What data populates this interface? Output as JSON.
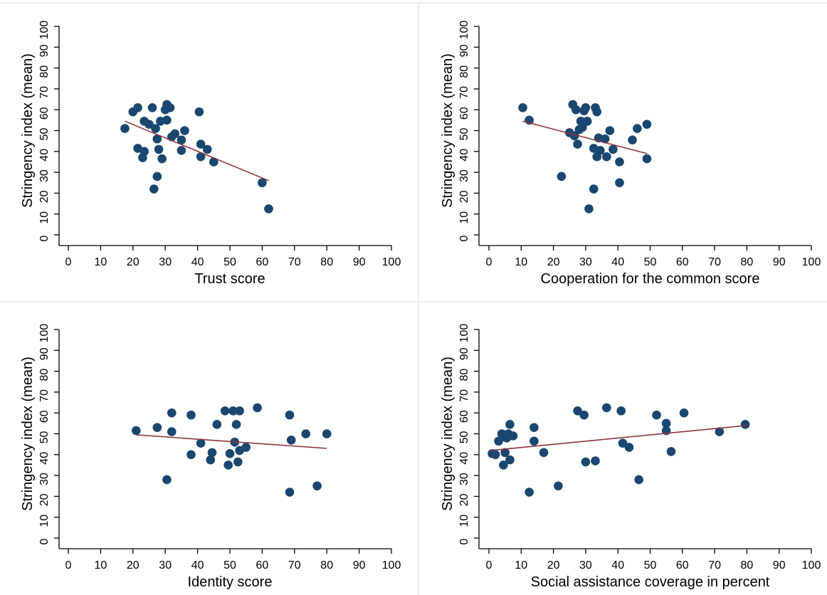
{
  "colors": {
    "background": "#ffffff",
    "panel_border": "#e6eef5",
    "axis": "#000000",
    "marker": "#1a476f",
    "fit_line": "#90353b"
  },
  "chart_data": [
    {
      "type": "scatter",
      "title": "",
      "xlabel": "Trust score",
      "ylabel": "Stringency index (mean)",
      "xlim": [
        0,
        100
      ],
      "ylim": [
        0,
        100
      ],
      "xticks": [
        0,
        10,
        20,
        30,
        40,
        50,
        60,
        70,
        80,
        90,
        100
      ],
      "yticks": [
        0,
        10,
        20,
        30,
        40,
        50,
        60,
        70,
        80,
        90,
        100
      ],
      "grid": false,
      "points": [
        {
          "x": 17.5,
          "y": 51
        },
        {
          "x": 20,
          "y": 59
        },
        {
          "x": 21.5,
          "y": 61
        },
        {
          "x": 21.5,
          "y": 41.5
        },
        {
          "x": 23,
          "y": 37
        },
        {
          "x": 23.5,
          "y": 40
        },
        {
          "x": 23.5,
          "y": 54.5
        },
        {
          "x": 25,
          "y": 53
        },
        {
          "x": 26,
          "y": 61
        },
        {
          "x": 26.5,
          "y": 22
        },
        {
          "x": 27,
          "y": 51
        },
        {
          "x": 27.5,
          "y": 28
        },
        {
          "x": 27.5,
          "y": 46
        },
        {
          "x": 28,
          "y": 41
        },
        {
          "x": 28.5,
          "y": 54.5
        },
        {
          "x": 29,
          "y": 36.5
        },
        {
          "x": 30,
          "y": 60
        },
        {
          "x": 30.5,
          "y": 62.5
        },
        {
          "x": 30.5,
          "y": 55
        },
        {
          "x": 31.5,
          "y": 61
        },
        {
          "x": 32,
          "y": 47
        },
        {
          "x": 33,
          "y": 48.5
        },
        {
          "x": 35,
          "y": 40.5
        },
        {
          "x": 35,
          "y": 45.5
        },
        {
          "x": 36,
          "y": 50
        },
        {
          "x": 40.5,
          "y": 59
        },
        {
          "x": 41,
          "y": 37.5
        },
        {
          "x": 41,
          "y": 43.5
        },
        {
          "x": 43,
          "y": 41
        },
        {
          "x": 45,
          "y": 35
        },
        {
          "x": 60,
          "y": 25
        },
        {
          "x": 62,
          "y": 12.5
        }
      ],
      "fit": {
        "x": [
          17.5,
          62
        ],
        "y": [
          54.5,
          26
        ]
      }
    },
    {
      "type": "scatter",
      "title": "",
      "xlabel": "Cooperation for the common score",
      "ylabel": "Stringency index (mean)",
      "xlim": [
        0,
        100
      ],
      "ylim": [
        0,
        100
      ],
      "xticks": [
        0,
        10,
        20,
        30,
        40,
        50,
        60,
        70,
        80,
        90,
        100
      ],
      "yticks": [
        0,
        10,
        20,
        30,
        40,
        50,
        60,
        70,
        80,
        90,
        100
      ],
      "grid": false,
      "points": [
        {
          "x": 10.5,
          "y": 61
        },
        {
          "x": 12.5,
          "y": 55
        },
        {
          "x": 22.5,
          "y": 28
        },
        {
          "x": 25,
          "y": 49
        },
        {
          "x": 26,
          "y": 62.5
        },
        {
          "x": 26.5,
          "y": 47.5
        },
        {
          "x": 27,
          "y": 60
        },
        {
          "x": 27.5,
          "y": 43.5
        },
        {
          "x": 28,
          "y": 50.5
        },
        {
          "x": 28.5,
          "y": 54.5
        },
        {
          "x": 29,
          "y": 51.5
        },
        {
          "x": 29.5,
          "y": 59.5
        },
        {
          "x": 30,
          "y": 61
        },
        {
          "x": 30.5,
          "y": 54.5
        },
        {
          "x": 31,
          "y": 12.5
        },
        {
          "x": 32.5,
          "y": 22
        },
        {
          "x": 32.5,
          "y": 41.5
        },
        {
          "x": 33,
          "y": 61
        },
        {
          "x": 33.5,
          "y": 59
        },
        {
          "x": 33.5,
          "y": 37.5
        },
        {
          "x": 34,
          "y": 46.5
        },
        {
          "x": 34.5,
          "y": 40.5
        },
        {
          "x": 36,
          "y": 46
        },
        {
          "x": 36.5,
          "y": 37.5
        },
        {
          "x": 37.5,
          "y": 50
        },
        {
          "x": 38.5,
          "y": 41
        },
        {
          "x": 40.5,
          "y": 35
        },
        {
          "x": 40.5,
          "y": 25
        },
        {
          "x": 44.5,
          "y": 45.5
        },
        {
          "x": 46,
          "y": 51
        },
        {
          "x": 49,
          "y": 53
        },
        {
          "x": 49,
          "y": 36.5
        }
      ],
      "fit": {
        "x": [
          10.5,
          49
        ],
        "y": [
          54.5,
          39
        ]
      }
    },
    {
      "type": "scatter",
      "title": "",
      "xlabel": "Identity score",
      "ylabel": "Stringency index (mean)",
      "xlim": [
        0,
        100
      ],
      "ylim": [
        0,
        100
      ],
      "xticks": [
        0,
        10,
        20,
        30,
        40,
        50,
        60,
        70,
        80,
        90,
        100
      ],
      "yticks": [
        0,
        10,
        20,
        30,
        40,
        50,
        60,
        70,
        80,
        90,
        100
      ],
      "grid": false,
      "points": [
        {
          "x": 21,
          "y": 51.5
        },
        {
          "x": 27.5,
          "y": 53
        },
        {
          "x": 30.5,
          "y": 28
        },
        {
          "x": 32,
          "y": 60
        },
        {
          "x": 32,
          "y": 51
        },
        {
          "x": 38,
          "y": 59
        },
        {
          "x": 38,
          "y": 40
        },
        {
          "x": 41,
          "y": 45.5
        },
        {
          "x": 44,
          "y": 37.5
        },
        {
          "x": 44.5,
          "y": 41
        },
        {
          "x": 46,
          "y": 54.5
        },
        {
          "x": 48.5,
          "y": 61
        },
        {
          "x": 49.5,
          "y": 35
        },
        {
          "x": 50,
          "y": 40.5
        },
        {
          "x": 51,
          "y": 61
        },
        {
          "x": 51.5,
          "y": 46
        },
        {
          "x": 52,
          "y": 54.5
        },
        {
          "x": 52.5,
          "y": 36.5
        },
        {
          "x": 53,
          "y": 61
        },
        {
          "x": 53,
          "y": 42
        },
        {
          "x": 55,
          "y": 43.5
        },
        {
          "x": 58.5,
          "y": 62.5
        },
        {
          "x": 68.5,
          "y": 59
        },
        {
          "x": 68.5,
          "y": 22
        },
        {
          "x": 69,
          "y": 47
        },
        {
          "x": 73.5,
          "y": 50
        },
        {
          "x": 77,
          "y": 25
        },
        {
          "x": 80,
          "y": 50
        }
      ],
      "fit": {
        "x": [
          21,
          80
        ],
        "y": [
          49.5,
          43
        ]
      }
    },
    {
      "type": "scatter",
      "title": "",
      "xlabel": "Social assistance coverage in percent",
      "ylabel": "Stringency index (mean)",
      "xlim": [
        0,
        100
      ],
      "ylim": [
        0,
        100
      ],
      "xticks": [
        0,
        10,
        20,
        30,
        40,
        50,
        60,
        70,
        80,
        90,
        100
      ],
      "yticks": [
        0,
        10,
        20,
        30,
        40,
        50,
        60,
        70,
        80,
        90,
        100
      ],
      "grid": false,
      "points": [
        {
          "x": 1,
          "y": 40.5
        },
        {
          "x": 2,
          "y": 40
        },
        {
          "x": 3,
          "y": 46.5
        },
        {
          "x": 4,
          "y": 50
        },
        {
          "x": 4.5,
          "y": 35
        },
        {
          "x": 5,
          "y": 41
        },
        {
          "x": 5.5,
          "y": 48
        },
        {
          "x": 6,
          "y": 50
        },
        {
          "x": 6.5,
          "y": 54.5
        },
        {
          "x": 6.5,
          "y": 37.5
        },
        {
          "x": 7.5,
          "y": 49
        },
        {
          "x": 12.5,
          "y": 22
        },
        {
          "x": 14,
          "y": 53
        },
        {
          "x": 14,
          "y": 46.5
        },
        {
          "x": 17,
          "y": 41
        },
        {
          "x": 21.5,
          "y": 25
        },
        {
          "x": 27.5,
          "y": 61
        },
        {
          "x": 29.5,
          "y": 59
        },
        {
          "x": 30,
          "y": 36.5
        },
        {
          "x": 33,
          "y": 37
        },
        {
          "x": 36.5,
          "y": 62.5
        },
        {
          "x": 41,
          "y": 61
        },
        {
          "x": 41.5,
          "y": 45.5
        },
        {
          "x": 43.5,
          "y": 43.5
        },
        {
          "x": 46.5,
          "y": 28
        },
        {
          "x": 52,
          "y": 59
        },
        {
          "x": 55,
          "y": 55
        },
        {
          "x": 55,
          "y": 51.5
        },
        {
          "x": 56.5,
          "y": 41.5
        },
        {
          "x": 60.5,
          "y": 60
        },
        {
          "x": 71.5,
          "y": 51
        },
        {
          "x": 79.5,
          "y": 54.5
        }
      ],
      "fit": {
        "x": [
          0.5,
          80
        ],
        "y": [
          42,
          54
        ]
      }
    }
  ]
}
